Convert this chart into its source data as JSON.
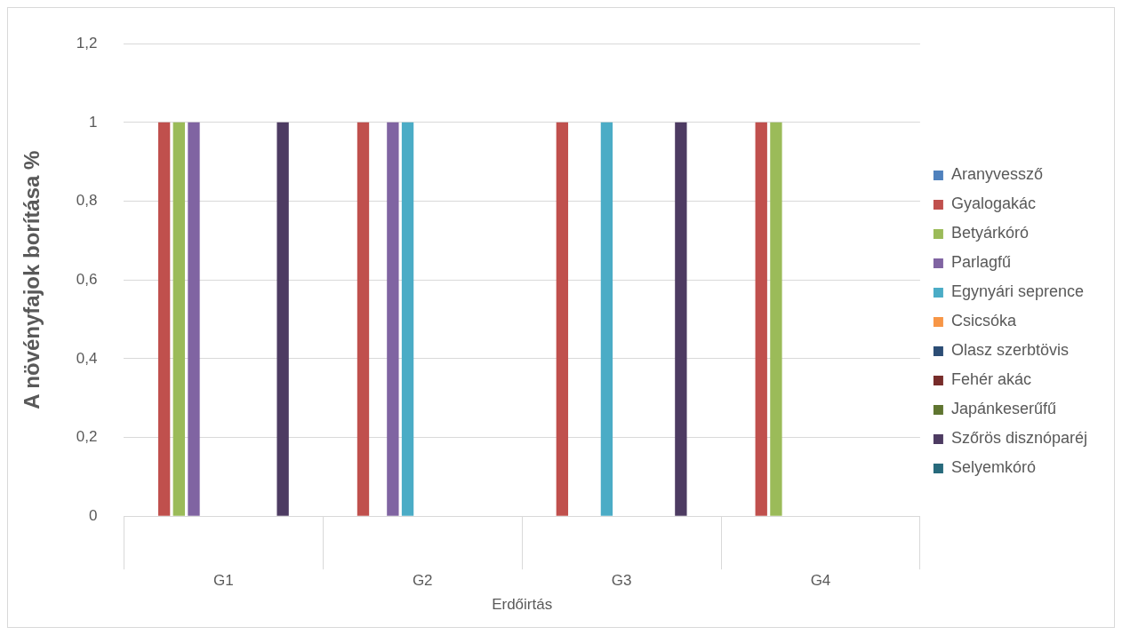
{
  "chart_data": {
    "type": "bar",
    "categories": [
      "G1",
      "G2",
      "G3",
      "G4"
    ],
    "xlabel": "Erdőirtás",
    "ylabel": "A növényfajok borítása %",
    "ylim": [
      0,
      1.2
    ],
    "yticks": [
      {
        "value": 0,
        "label": "0"
      },
      {
        "value": 0.2,
        "label": "0,2"
      },
      {
        "value": 0.4,
        "label": "0,4"
      },
      {
        "value": 0.6,
        "label": "0,6"
      },
      {
        "value": 0.8,
        "label": "0,8"
      },
      {
        "value": 1,
        "label": "1"
      },
      {
        "value": 1.2,
        "label": "1,2"
      }
    ],
    "grid": "y",
    "legend": "right",
    "series": [
      {
        "name": "Aranyvessző",
        "color": "#4f81bd",
        "values": [
          0,
          0,
          0,
          0
        ]
      },
      {
        "name": "Gyalogakác",
        "color": "#c0504d",
        "values": [
          1,
          1,
          1,
          1
        ]
      },
      {
        "name": "Betyárkóró",
        "color": "#9bbb59",
        "values": [
          1,
          0,
          0,
          1
        ]
      },
      {
        "name": "Parlagfű",
        "color": "#8064a2",
        "values": [
          1,
          1,
          0,
          0
        ]
      },
      {
        "name": "Egynyári seprence",
        "color": "#4bacc6",
        "values": [
          0,
          1,
          1,
          0
        ]
      },
      {
        "name": "Csicsóka",
        "color": "#f79646",
        "values": [
          0,
          0,
          0,
          0
        ]
      },
      {
        "name": "Olasz szerbtövis",
        "color": "#2c4d75",
        "values": [
          0,
          0,
          0,
          0
        ]
      },
      {
        "name": "Fehér akác",
        "color": "#772c2a",
        "values": [
          0,
          0,
          0,
          0
        ]
      },
      {
        "name": "Japánkeserűfű",
        "color": "#5f7530",
        "values": [
          0,
          0,
          0,
          0
        ]
      },
      {
        "name": "Szőrös disznóparéj",
        "color": "#4d3b62",
        "values": [
          1,
          0,
          1,
          0
        ]
      },
      {
        "name": "Selyemkóró",
        "color": "#276a7c",
        "values": [
          0,
          0,
          0,
          0
        ]
      }
    ]
  }
}
